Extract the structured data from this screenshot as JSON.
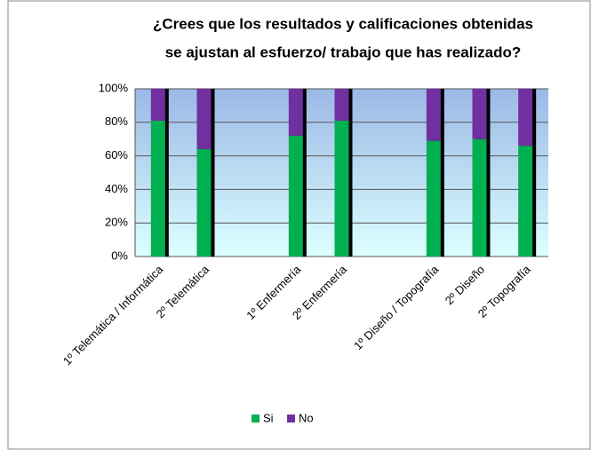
{
  "chart_data": {
    "type": "stacked_bar",
    "title": [
      "¿Crees que los resultados y calificaciones  obtenidas",
      "se ajustan al esfuerzo/ trabajo que has realizado?"
    ],
    "categories": [
      "1º Telemática / Informática",
      "2º Telemática",
      null,
      "1º Enfermería",
      "2º Enfermería",
      null,
      "1º Diseño / Topografía",
      "2º Diseño",
      "2º Topografía"
    ],
    "series": [
      {
        "name": "Si",
        "color": "#00b050",
        "values": [
          81,
          64,
          null,
          72,
          81,
          null,
          69,
          70,
          66
        ]
      },
      {
        "name": "No",
        "color": "#7030a0",
        "values": [
          19,
          36,
          null,
          28,
          19,
          null,
          31,
          30,
          34
        ]
      }
    ],
    "ylim": [
      0,
      100
    ],
    "yticks": [
      {
        "value": 0,
        "label": "0%"
      },
      {
        "value": 20,
        "label": "20%"
      },
      {
        "value": 40,
        "label": "40%"
      },
      {
        "value": 60,
        "label": "60%"
      },
      {
        "value": 80,
        "label": "80%"
      },
      {
        "value": 100,
        "label": "100%"
      }
    ],
    "grid": true,
    "legend": "bottom"
  }
}
